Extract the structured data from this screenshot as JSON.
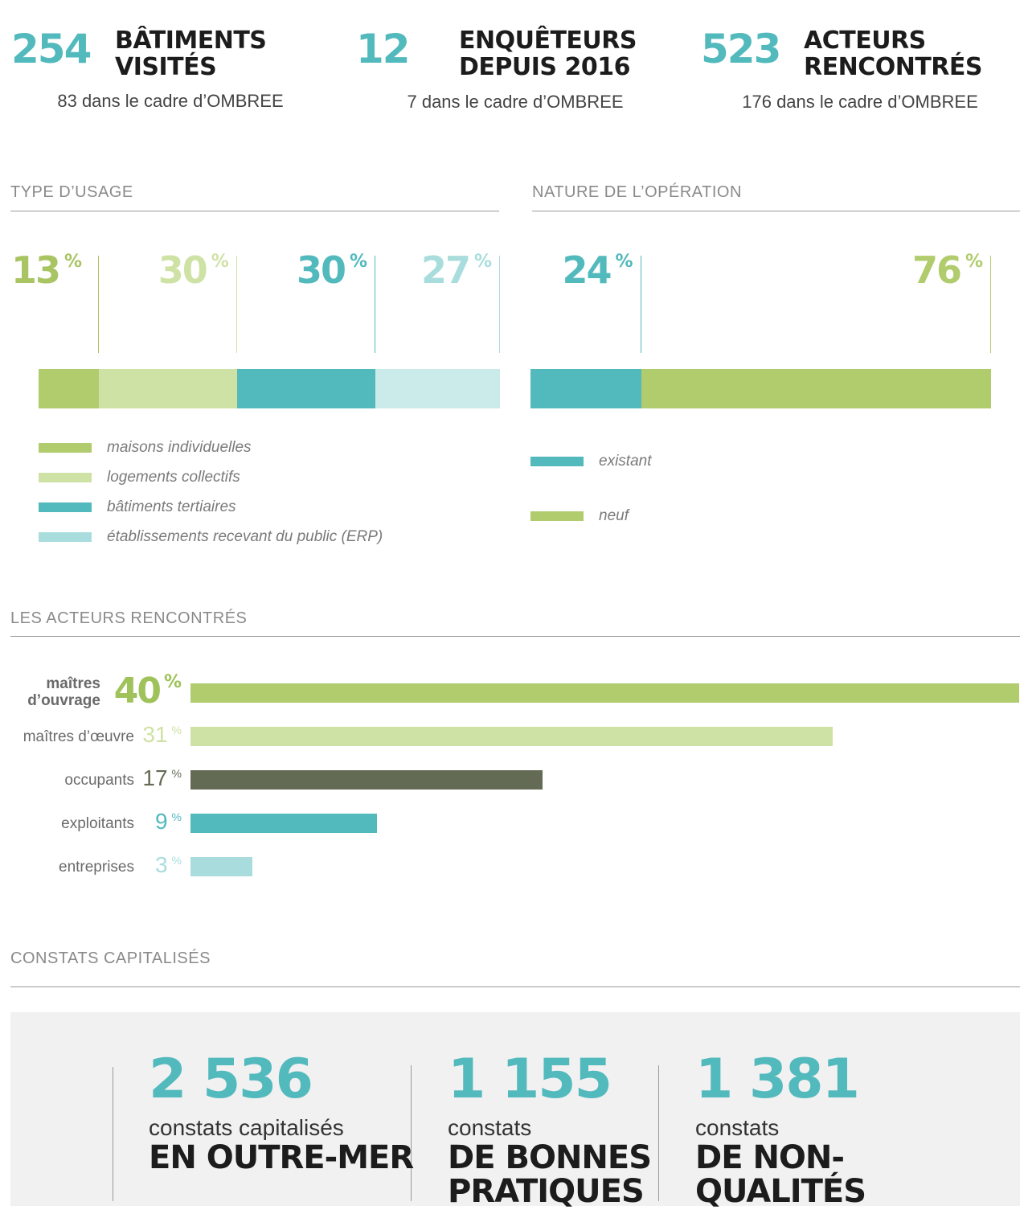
{
  "top_stats": [
    {
      "value": "254",
      "label_line1": "BÂTIMENTS",
      "label_line2": "VISITÉS",
      "sub": "83 dans le cadre d’OMBREE"
    },
    {
      "value": "12",
      "label_line1": "ENQUÊTEURS",
      "label_line2": "DEPUIS 2016",
      "sub": "7 dans le cadre d’OMBREE"
    },
    {
      "value": "523",
      "label_line1": "ACTEURS",
      "label_line2": "RENCONTRÉS",
      "sub": "176 dans le cadre d’OMBREE"
    }
  ],
  "sections": {
    "usage": "TYPE D’USAGE",
    "operation": "NATURE DE L’OPÉRATION",
    "actors": "LES ACTEURS RENCONTRÉS",
    "constats": "CONSTATS CAPITALISÉS"
  },
  "colors": {
    "green": "#b0cc6d",
    "light_green": "#cfe2a5",
    "teal": "#52b9bd",
    "light_teal": "#cbeaea",
    "pale_teal": "#a9dddd",
    "dark_olive": "#646b55"
  },
  "chart_data": [
    {
      "type": "bar",
      "orientation": "stacked-horizontal",
      "title": "TYPE D’USAGE",
      "unit": "%",
      "categories": [
        "maisons individuelles",
        "logements collectifs",
        "bâtiments tertiaires",
        "établissements recevant du public (ERP)"
      ],
      "values": [
        13,
        30,
        30,
        27
      ],
      "labels": [
        "13",
        "30",
        "30",
        "27"
      ],
      "colors": [
        "#b0cc6d",
        "#cfe2a5",
        "#52b9bd",
        "#cbeaea"
      ],
      "label_colors": [
        "#a9c463",
        "#cfe2a5",
        "#52b9bd",
        "#a9dddd"
      ],
      "legend_colors": [
        "#b0cc6d",
        "#cfe2a5",
        "#52b9bd",
        "#a9dddd"
      ],
      "legend": "bottom-left"
    },
    {
      "type": "bar",
      "orientation": "stacked-horizontal",
      "title": "NATURE DE L’OPÉRATION",
      "unit": "%",
      "categories": [
        "existant",
        "neuf"
      ],
      "values": [
        24,
        76
      ],
      "labels": [
        "24",
        "76"
      ],
      "colors": [
        "#52b9bd",
        "#b0cc6d"
      ],
      "label_colors": [
        "#52b9bd",
        "#b0cc6d"
      ],
      "legend_colors": [
        "#52b9bd",
        "#b0cc6d"
      ],
      "legend": "bottom-left"
    },
    {
      "type": "bar",
      "orientation": "horizontal",
      "title": "LES ACTEURS RENCONTRÉS",
      "unit": "%",
      "categories": [
        "maîtres d’ouvrage",
        "maîtres d’œuvre",
        "occupants",
        "exploitants",
        "entreprises"
      ],
      "values": [
        40,
        31,
        17,
        9,
        3
      ],
      "labels": [
        "40",
        "31",
        "17",
        "9",
        "3"
      ],
      "colors": [
        "#b0cc6d",
        "#cfe2a5",
        "#646b55",
        "#52b9bd",
        "#a9dddd"
      ],
      "label_colors": [
        "#9fc25a",
        "#cfe2a5",
        "#646b55",
        "#52b9bd",
        "#a9dddd"
      ],
      "xlim": [
        0,
        40
      ]
    }
  ],
  "actors_first_label": {
    "line1": "maîtres",
    "line2": "d’ouvrage"
  },
  "constats": [
    {
      "value": "2 536",
      "sub": "constats capitalisés",
      "cap_line1": "EN OUTRE-MER",
      "cap_line2": ""
    },
    {
      "value": "1 155",
      "sub": "constats",
      "cap_line1": "DE BONNES",
      "cap_line2": "PRATIQUES"
    },
    {
      "value": "1 381",
      "sub": "constats",
      "cap_line1": "DE NON-",
      "cap_line2": "QUALITÉS"
    }
  ]
}
